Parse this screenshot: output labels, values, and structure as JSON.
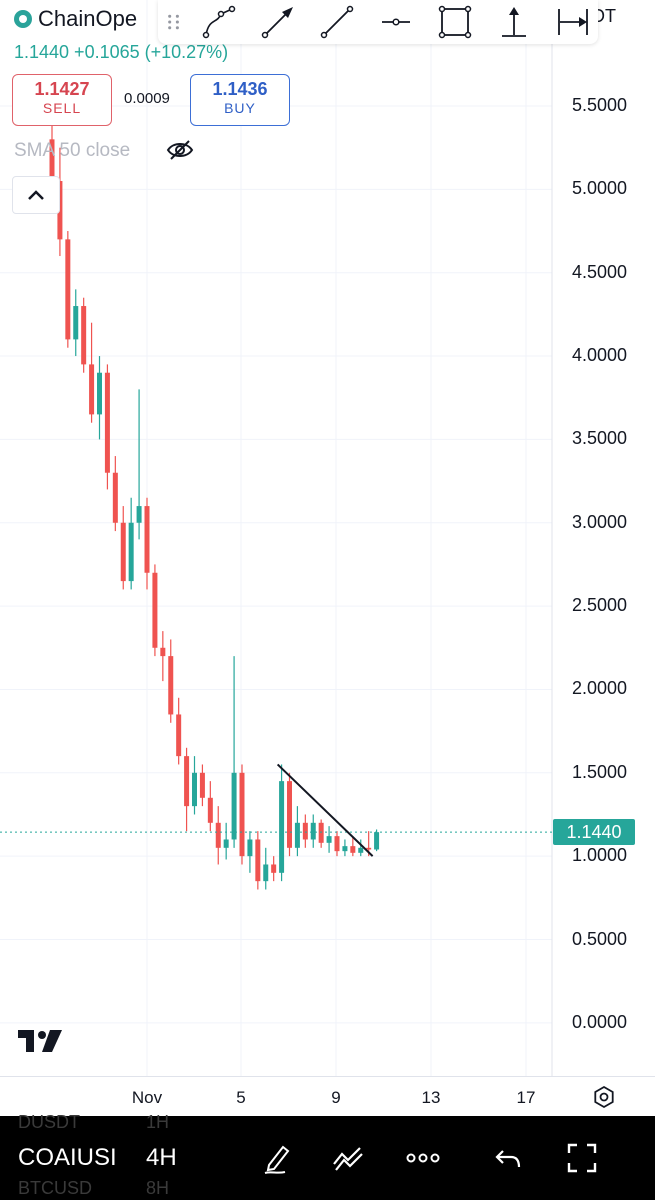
{
  "header": {
    "symbol_name": "ChainOpe",
    "pair_suffix": "DT",
    "change_text": "1.1440 +0.1065 (+10.27%)",
    "sell": {
      "price": "1.1427",
      "label": "SELL"
    },
    "spread": "0.0009",
    "buy": {
      "price": "1.1436",
      "label": "BUY"
    },
    "indicator": "SMA 50 close"
  },
  "drawing_toolbar": {
    "tools": [
      "path-tool-icon",
      "arrow-tool-icon",
      "trend-line-tool-icon",
      "horizontal-ray-tool-icon",
      "rectangle-tool-icon",
      "vertical-range-tool-icon",
      "horizontal-range-tool-icon"
    ]
  },
  "price_axis": {
    "labels": [
      "5.5000",
      "5.0000",
      "4.5000",
      "4.0000",
      "3.5000",
      "3.0000",
      "2.5000",
      "2.0000",
      "1.5000",
      "1.0000",
      "0.5000",
      "0.0000"
    ],
    "last_price": "1.1440"
  },
  "time_axis": {
    "labels": [
      "Nov",
      "5",
      "9",
      "13",
      "17"
    ]
  },
  "bottom_bar": {
    "symbol": "COAIUSI",
    "interval": "4H",
    "ghost_above_symbol": "DUSDT",
    "ghost_above_interval": "1H",
    "ghost_below_symbol": "BTCUSD",
    "ghost_below_interval": "8H"
  },
  "colors": {
    "up": "#26a69a",
    "down": "#ef5350",
    "accent_blue": "#2962ff"
  },
  "chart_data": {
    "type": "candlestick",
    "y_range": [
      -0.25,
      5.8
    ],
    "x_range": [
      "Oct 27",
      "Nov 18"
    ],
    "last_price": 1.144,
    "drawn_trend_line": {
      "from": [
        "Nov 6 12:00",
        1.55
      ],
      "to": [
        "Nov 10 12:00",
        1.0
      ]
    },
    "candles": [
      {
        "t": "Oct 28 00:00",
        "o": 5.3,
        "h": 5.6,
        "l": 5.0,
        "c": 5.05
      },
      {
        "t": "Oct 28 08:00",
        "o": 5.05,
        "h": 5.25,
        "l": 4.6,
        "c": 4.7
      },
      {
        "t": "Oct 28 16:00",
        "o": 4.7,
        "h": 4.75,
        "l": 4.05,
        "c": 4.1
      },
      {
        "t": "Oct 29 00:00",
        "o": 4.1,
        "h": 4.4,
        "l": 4.0,
        "c": 4.3
      },
      {
        "t": "Oct 29 08:00",
        "o": 4.3,
        "h": 4.35,
        "l": 3.9,
        "c": 3.95
      },
      {
        "t": "Oct 29 16:00",
        "o": 3.95,
        "h": 4.2,
        "l": 3.6,
        "c": 3.65
      },
      {
        "t": "Oct 30 00:00",
        "o": 3.65,
        "h": 4.0,
        "l": 3.5,
        "c": 3.9
      },
      {
        "t": "Oct 30 08:00",
        "o": 3.9,
        "h": 3.95,
        "l": 3.2,
        "c": 3.3
      },
      {
        "t": "Oct 30 16:00",
        "o": 3.3,
        "h": 3.4,
        "l": 2.95,
        "c": 3.0
      },
      {
        "t": "Oct 31 00:00",
        "o": 3.0,
        "h": 3.1,
        "l": 2.6,
        "c": 2.65
      },
      {
        "t": "Oct 31 08:00",
        "o": 2.65,
        "h": 3.15,
        "l": 2.6,
        "c": 3.0
      },
      {
        "t": "Oct 31 16:00",
        "o": 3.0,
        "h": 3.8,
        "l": 2.9,
        "c": 3.1
      },
      {
        "t": "Nov 1 00:00",
        "o": 3.1,
        "h": 3.15,
        "l": 2.6,
        "c": 2.7
      },
      {
        "t": "Nov 1 08:00",
        "o": 2.7,
        "h": 2.75,
        "l": 2.2,
        "c": 2.25
      },
      {
        "t": "Nov 1 16:00",
        "o": 2.25,
        "h": 2.35,
        "l": 2.05,
        "c": 2.2
      },
      {
        "t": "Nov 2 00:00",
        "o": 2.2,
        "h": 2.3,
        "l": 1.8,
        "c": 1.85
      },
      {
        "t": "Nov 2 08:00",
        "o": 1.85,
        "h": 1.95,
        "l": 1.55,
        "c": 1.6
      },
      {
        "t": "Nov 2 16:00",
        "o": 1.6,
        "h": 1.65,
        "l": 1.15,
        "c": 1.3
      },
      {
        "t": "Nov 3 00:00",
        "o": 1.3,
        "h": 1.6,
        "l": 1.25,
        "c": 1.5
      },
      {
        "t": "Nov 3 08:00",
        "o": 1.5,
        "h": 1.55,
        "l": 1.3,
        "c": 1.35
      },
      {
        "t": "Nov 3 16:00",
        "o": 1.35,
        "h": 1.45,
        "l": 1.15,
        "c": 1.2
      },
      {
        "t": "Nov 4 00:00",
        "o": 1.2,
        "h": 1.3,
        "l": 0.95,
        "c": 1.05
      },
      {
        "t": "Nov 4 08:00",
        "o": 1.05,
        "h": 1.2,
        "l": 0.98,
        "c": 1.1
      },
      {
        "t": "Nov 4 16:00",
        "o": 1.1,
        "h": 2.2,
        "l": 1.05,
        "c": 1.5
      },
      {
        "t": "Nov 5 00:00",
        "o": 1.5,
        "h": 1.55,
        "l": 0.95,
        "c": 1.0
      },
      {
        "t": "Nov 5 08:00",
        "o": 1.0,
        "h": 1.15,
        "l": 0.9,
        "c": 1.1
      },
      {
        "t": "Nov 5 16:00",
        "o": 1.1,
        "h": 1.15,
        "l": 0.8,
        "c": 0.85
      },
      {
        "t": "Nov 6 00:00",
        "o": 0.85,
        "h": 1.05,
        "l": 0.8,
        "c": 0.95
      },
      {
        "t": "Nov 6 08:00",
        "o": 0.95,
        "h": 1.0,
        "l": 0.85,
        "c": 0.9
      },
      {
        "t": "Nov 6 16:00",
        "o": 0.9,
        "h": 1.55,
        "l": 0.85,
        "c": 1.45
      },
      {
        "t": "Nov 7 00:00",
        "o": 1.45,
        "h": 1.5,
        "l": 1.0,
        "c": 1.05
      },
      {
        "t": "Nov 7 08:00",
        "o": 1.05,
        "h": 1.3,
        "l": 1.0,
        "c": 1.2
      },
      {
        "t": "Nov 7 16:00",
        "o": 1.2,
        "h": 1.25,
        "l": 1.05,
        "c": 1.1
      },
      {
        "t": "Nov 8 00:00",
        "o": 1.1,
        "h": 1.25,
        "l": 1.05,
        "c": 1.2
      },
      {
        "t": "Nov 8 08:00",
        "o": 1.2,
        "h": 1.22,
        "l": 1.05,
        "c": 1.08
      },
      {
        "t": "Nov 8 16:00",
        "o": 1.08,
        "h": 1.18,
        "l": 1.02,
        "c": 1.12
      },
      {
        "t": "Nov 9 00:00",
        "o": 1.12,
        "h": 1.15,
        "l": 1.0,
        "c": 1.03
      },
      {
        "t": "Nov 9 08:00",
        "o": 1.03,
        "h": 1.1,
        "l": 1.0,
        "c": 1.06
      },
      {
        "t": "Nov 9 16:00",
        "o": 1.06,
        "h": 1.12,
        "l": 1.0,
        "c": 1.02
      },
      {
        "t": "Nov 10 00:00",
        "o": 1.02,
        "h": 1.1,
        "l": 1.0,
        "c": 1.05
      },
      {
        "t": "Nov 10 08:00",
        "o": 1.05,
        "h": 1.15,
        "l": 1.0,
        "c": 1.04
      },
      {
        "t": "Nov 10 16:00",
        "o": 1.04,
        "h": 1.16,
        "l": 1.03,
        "c": 1.144
      }
    ]
  }
}
